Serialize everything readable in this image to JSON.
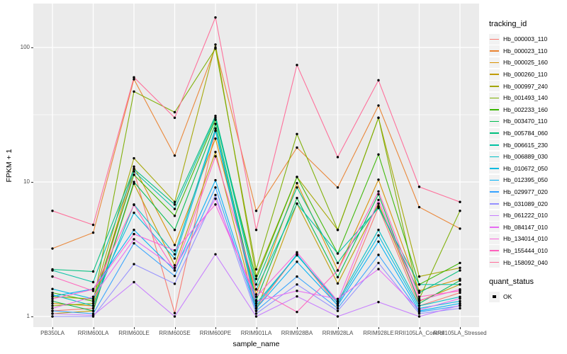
{
  "chart_data": {
    "type": "line",
    "xlabel": "sample_name",
    "ylabel": "FPKM + 1",
    "y_scale": "log10",
    "y_ticks": [
      1,
      10,
      100
    ],
    "ylim": [
      0.95,
      210
    ],
    "grid": "major-and-minor-white-on-gray",
    "legend_position": "right",
    "panel_bg": "#EBEBEB",
    "grid_color": "#FFFFFF",
    "point_color": "#000000",
    "categories": [
      "PB350LA",
      "RRIM600LA",
      "RRIM600LE",
      "RRIM600SE",
      "RRIM600PE",
      "RRIM901LA",
      "RRIM928BA",
      "RRIM928LA",
      "RRIM928LE",
      "RRII105LA_Control",
      "RRII105LA_Stressed"
    ],
    "legend_title": "tracking_id",
    "series": [
      {
        "name": "Hb_000003_110",
        "color": "#F8766D",
        "values": [
          1.1,
          1.15,
          12,
          1.06,
          24,
          1.15,
          2.9,
          1.2,
          6.5,
          1.2,
          1.5
        ]
      },
      {
        "name": "Hb_000023_110",
        "color": "#EA8331",
        "values": [
          3.2,
          4.2,
          58,
          15.7,
          100,
          6.1,
          18,
          9.1,
          37,
          6.5,
          4.5
        ]
      },
      {
        "name": "Hb_000025_160",
        "color": "#D89000",
        "values": [
          1.25,
          1.2,
          13,
          3.4,
          21,
          1.46,
          9.8,
          2.2,
          10.4,
          1.55,
          1.9
        ]
      },
      {
        "name": "Hb_000260_110",
        "color": "#C09B00",
        "values": [
          1.05,
          1.1,
          9.7,
          2.4,
          16.7,
          1.1,
          6.9,
          1.76,
          6.9,
          1.3,
          1.73
        ]
      },
      {
        "name": "Hb_000997_240",
        "color": "#A3A500",
        "values": [
          1.4,
          1.35,
          15,
          7.1,
          105,
          2.0,
          10.9,
          4.4,
          30,
          1.98,
          2.3
        ]
      },
      {
        "name": "Hb_001493_140",
        "color": "#7CAE00",
        "values": [
          1.2,
          1.25,
          47,
          33,
          98,
          2.24,
          22.7,
          4.4,
          30,
          1.35,
          6.1
        ]
      },
      {
        "name": "Hb_002233_160",
        "color": "#39B600",
        "values": [
          1.5,
          1.3,
          11.3,
          5.6,
          29,
          1.9,
          10.9,
          2.94,
          16,
          1.73,
          2.5
        ]
      },
      {
        "name": "Hb_003470_110",
        "color": "#00BB4E",
        "values": [
          1.3,
          1.1,
          10,
          4.4,
          27,
          1.32,
          7.6,
          1.96,
          8.1,
          1.25,
          1.85
        ]
      },
      {
        "name": "Hb_005784_060",
        "color": "#00BF7D",
        "values": [
          2.24,
          2.16,
          12.5,
          6.8,
          31,
          1.73,
          9.1,
          2.5,
          6.6,
          1.5,
          2.2
        ]
      },
      {
        "name": "Hb_006615_230",
        "color": "#00C1A3",
        "values": [
          2.2,
          1.8,
          12,
          6.3,
          30,
          1.59,
          6.9,
          2.94,
          6.4,
          1.73,
          1.73
        ]
      },
      {
        "name": "Hb_006889_030",
        "color": "#00BFC4",
        "values": [
          1.45,
          1.2,
          6.8,
          2.9,
          25,
          1.25,
          2.85,
          1.29,
          4.4,
          1.2,
          1.4
        ]
      },
      {
        "name": "Hb_010672_050",
        "color": "#00BAE0",
        "values": [
          1.6,
          1.35,
          5.9,
          2.7,
          24,
          1.2,
          2.9,
          1.25,
          4.0,
          1.15,
          1.3
        ]
      },
      {
        "name": "Hb_012395_050",
        "color": "#00B0F6",
        "values": [
          1.41,
          1.6,
          4.4,
          2.2,
          10.3,
          1.15,
          2.55,
          1.21,
          3.6,
          1.1,
          1.25
        ]
      },
      {
        "name": "Hb_029977_020",
        "color": "#35A2FF",
        "values": [
          1.1,
          1.05,
          3.5,
          2.0,
          9.1,
          1.1,
          1.98,
          1.15,
          2.87,
          1.08,
          1.2
        ]
      },
      {
        "name": "Hb_031089_020",
        "color": "#9590FF",
        "values": [
          1.0,
          1.0,
          2.45,
          1.75,
          8.0,
          1.05,
          1.73,
          1.1,
          2.5,
          1.05,
          1.15
        ]
      },
      {
        "name": "Hb_061222_010",
        "color": "#C77CFF",
        "values": [
          1.05,
          1.02,
          1.8,
          1.0,
          2.9,
          1.0,
          1.41,
          1.0,
          1.28,
          1.0,
          1.21
        ]
      },
      {
        "name": "Hb_084147_010",
        "color": "#E76BF3",
        "values": [
          1.15,
          1.4,
          3.75,
          2.3,
          7.5,
          1.3,
          1.55,
          1.35,
          2.25,
          1.12,
          1.36
        ]
      },
      {
        "name": "Hb_134014_010",
        "color": "#FA62DB",
        "values": [
          1.35,
          1.59,
          4.1,
          3.1,
          6.8,
          1.4,
          3.0,
          1.3,
          7.35,
          1.32,
          1.59
        ]
      },
      {
        "name": "Hb_155444_010",
        "color": "#FF62BC",
        "values": [
          1.98,
          1.55,
          6.75,
          2.2,
          15.5,
          1.59,
          1.08,
          2.2,
          8.5,
          1.4,
          1.55
        ]
      },
      {
        "name": "Hb_158092_040",
        "color": "#FF6A98",
        "values": [
          6.1,
          4.8,
          60,
          30,
          167,
          4.4,
          74,
          15.3,
          57,
          9.2,
          7.1
        ]
      }
    ],
    "legend2_title": "quant_status",
    "legend2_items": [
      {
        "label": "OK"
      }
    ]
  }
}
